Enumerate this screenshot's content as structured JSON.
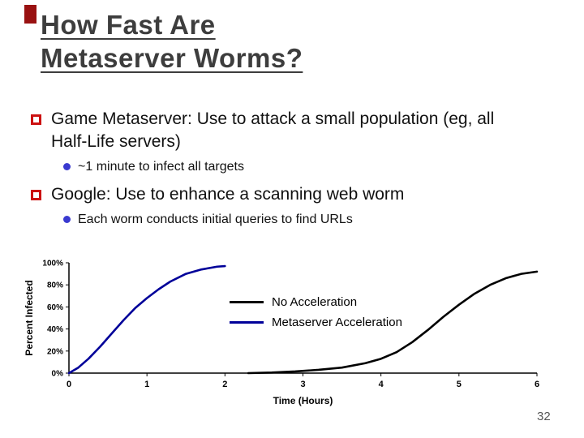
{
  "slide": {
    "title_line1": "How Fast Are",
    "title_line2": "Metaserver Worms?",
    "page_number": "32",
    "bullets": [
      {
        "text": "Game Metaserver: Use to attack a small population (eg, all Half-Life servers)",
        "sub": "~1 minute to infect all targets"
      },
      {
        "text": "Google: Use to enhance a scanning web worm",
        "sub": "Each worm conducts initial queries to find URLs"
      }
    ]
  },
  "colors": {
    "accent_bar": "#991111",
    "bullet_square": "#cc1111",
    "sub_bullet_dot": "#3a3ad0",
    "title_text": "#3d3d3d"
  },
  "chart_data": {
    "type": "line",
    "title": "",
    "xlabel": "Time (Hours)",
    "ylabel": "Percent Infected",
    "xlim": [
      0,
      6
    ],
    "ylim": [
      0,
      100
    ],
    "x_ticks": [
      "0",
      "1",
      "2",
      "3",
      "4",
      "5",
      "6"
    ],
    "y_ticks": [
      "0%",
      "20%",
      "40%",
      "60%",
      "80%",
      "100%"
    ],
    "grid": false,
    "legend_position": "center",
    "series": [
      {
        "name": "No Acceleration",
        "color": "#000000",
        "x": [
          2.3,
          2.6,
          2.9,
          3.2,
          3.5,
          3.8,
          4.0,
          4.2,
          4.4,
          4.6,
          4.8,
          5.0,
          5.2,
          5.4,
          5.6,
          5.8,
          6.0
        ],
        "y": [
          0,
          0.5,
          1.5,
          3,
          5,
          9,
          13,
          19,
          28,
          39,
          51,
          62,
          72,
          80,
          86,
          90,
          92
        ]
      },
      {
        "name": "Metaserver Acceleration",
        "color": "#000099",
        "x": [
          0,
          0.12,
          0.25,
          0.4,
          0.55,
          0.7,
          0.85,
          1.0,
          1.15,
          1.3,
          1.5,
          1.7,
          1.9,
          2.0
        ],
        "y": [
          0,
          5,
          13,
          24,
          36,
          48,
          59,
          68,
          76,
          83,
          90,
          94,
          96.5,
          97
        ]
      }
    ]
  }
}
